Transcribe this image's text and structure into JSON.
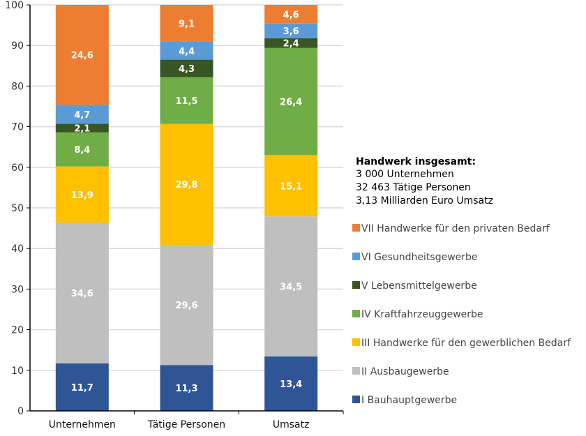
{
  "chart_data": {
    "type": "bar",
    "stacked": true,
    "categories": [
      "Unternehmen",
      "Tätige Personen",
      "Umsatz"
    ],
    "ylim": [
      0,
      100
    ],
    "yticks": [
      0,
      10,
      20,
      30,
      40,
      50,
      60,
      70,
      80,
      90,
      100
    ],
    "grid": true,
    "legend_position": "right",
    "series": [
      {
        "name": "I Bauhauptgewerbe",
        "color": "#2F5597",
        "values": [
          11.7,
          11.3,
          13.4
        ],
        "labels": [
          "11,7",
          "11,3",
          "13,4"
        ]
      },
      {
        "name": "II Ausbaugewerbe",
        "color": "#BFBFBF",
        "values": [
          34.6,
          29.6,
          34.5
        ],
        "labels": [
          "34,6",
          "29,6",
          "34,5"
        ]
      },
      {
        "name": "III Handwerke für den gewerblichen Bedarf",
        "color": "#FFC000",
        "values": [
          13.9,
          29.8,
          15.1
        ],
        "labels": [
          "13,9",
          "29,8",
          "15,1"
        ]
      },
      {
        "name": "IV Kraftfahrzeuggewerbe",
        "color": "#70AD47",
        "values": [
          8.4,
          11.5,
          26.4
        ],
        "labels": [
          "8,4",
          "11,5",
          "26,4"
        ]
      },
      {
        "name": "V Lebensmittelgewerbe",
        "color": "#375623",
        "values": [
          2.1,
          4.3,
          2.4
        ],
        "labels": [
          "2,1",
          "4,3",
          "2,4"
        ]
      },
      {
        "name": "VI Gesundheitsgewerbe",
        "color": "#5B9BD5",
        "values": [
          4.7,
          4.4,
          3.6
        ],
        "labels": [
          "4,7",
          "4,4",
          "3,6"
        ]
      },
      {
        "name": "VII Handwerke für den privaten Bedarf",
        "color": "#ED7D31",
        "values": [
          24.6,
          9.1,
          4.6
        ],
        "labels": [
          "24,6",
          "9,1",
          "4,6"
        ]
      }
    ],
    "summary": {
      "title": "Handwerk insgesamt:",
      "lines": [
        "3 000 Unternehmen",
        "32 463 Tätige Personen",
        "3,13 Milliarden Euro Umsatz"
      ]
    }
  }
}
